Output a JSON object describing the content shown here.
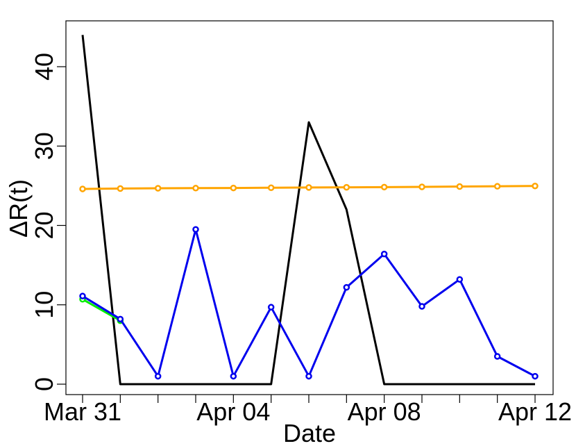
{
  "chart_data": {
    "type": "line",
    "x": [
      "2020-03-31",
      "2020-04-01",
      "2020-04-02",
      "2020-04-03",
      "2020-04-04",
      "2020-04-05",
      "2020-04-06",
      "2020-04-07",
      "2020-04-08",
      "2020-04-09",
      "2020-04-10",
      "2020-04-11",
      "2020-04-12"
    ],
    "x_ticks": [
      "2020-03-31",
      "2020-04-01",
      "2020-04-02",
      "2020-04-03",
      "2020-04-04",
      "2020-04-05",
      "2020-04-06",
      "2020-04-07",
      "2020-04-08",
      "2020-04-09",
      "2020-04-10",
      "2020-04-11",
      "2020-04-12"
    ],
    "x_tick_labels": [
      "Mar 31",
      "",
      "",
      "",
      "Apr 04",
      "",
      "",
      "",
      "Apr 08",
      "",
      "",
      "",
      "Apr 12"
    ],
    "xlim": [
      "2020-03-31",
      "2020-04-12"
    ],
    "xlabel": "Date",
    "ylabel": "ΔR(t)",
    "ylim": [
      -1,
      45.5
    ],
    "y_ticks": [
      0,
      10,
      20,
      30,
      40
    ],
    "y_tick_labels": [
      "0",
      "10",
      "20",
      "30",
      "40"
    ],
    "grid": false,
    "series": [
      {
        "color": "#000000",
        "markers": false,
        "values": [
          44,
          0,
          0,
          0,
          0,
          0,
          33,
          22,
          0,
          0,
          0,
          0,
          0
        ]
      },
      {
        "color": "#FFA500",
        "markers": true,
        "values": [
          24.6,
          24.65,
          24.68,
          24.7,
          24.72,
          24.75,
          24.78,
          24.8,
          24.83,
          24.86,
          24.9,
          24.93,
          24.97
        ]
      },
      {
        "color": "#00EE00",
        "markers": true,
        "partial": true,
        "values": [
          10.7,
          8.0,
          null,
          null,
          null,
          null,
          null,
          null,
          null,
          null,
          null,
          null,
          null
        ]
      },
      {
        "color": "#0000EE",
        "markers": true,
        "values": [
          11.1,
          8.2,
          1.0,
          19.5,
          1.0,
          9.7,
          1.0,
          12.2,
          16.4,
          9.8,
          13.2,
          3.5,
          1.0
        ]
      }
    ]
  }
}
